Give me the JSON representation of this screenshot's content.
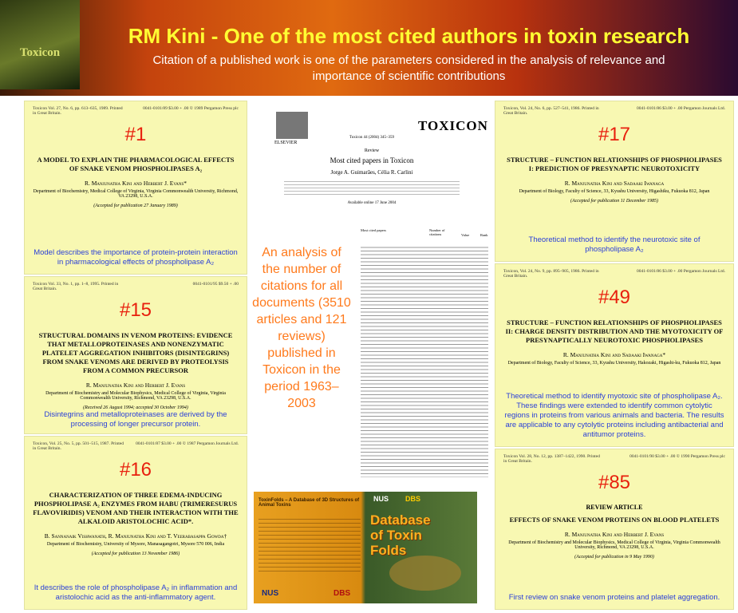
{
  "header": {
    "cover_title": "Toxicon",
    "title": "RM Kini - One of the most cited authors in toxin research",
    "subtitle": "Citation of a published work is one of the parameters considered in the analysis of relevance and importance of scientific contributions"
  },
  "panels": [
    {
      "number": "#1",
      "journal_left": "Toxicon Vol. 27, No. 6, pp. 613–635, 1989. Printed in Great Britain.",
      "journal_right": "0041-0101/89 $3.00 + .00 © 1989 Pergamon Press plc",
      "title": "A MODEL TO EXPLAIN THE PHARMACOLOGICAL EFFECTS OF SNAKE VENOM PHOSPHOLIPASES A₂",
      "authors": "R. Manjunatha Kini and Herbert J. Evans*",
      "affiliation": "Department of Biochemistry, Medical College of Virginia, Virginia Commonwealth University, Richmond, VA 23298, U.S.A.",
      "accepted": "(Accepted for publication 27 January 1989)",
      "caption": "Model describes the importance of protein-protein interaction in pharmacological effects of phospholipase A₂"
    },
    {
      "number": "#15",
      "journal_left": "Toxicon Vol. 33, No. 1, pp. 1–8, 1995. Printed in Great Britain.",
      "journal_right": "0041-0101/95 $9.50 + .00",
      "title": "STRUCTURAL DOMAINS IN VENOM PROTEINS: EVIDENCE THAT METALLOPROTEINASES AND NONENZYMATIC PLATELET AGGREGATION INHIBITORS (DISINTEGRINS) FROM SNAKE VENOMS ARE DERIVED BY PROTEOLYSIS FROM A COMMON PRECURSOR",
      "authors": "R. Manjunatha Kini and Herbert J. Evans",
      "affiliation": "Department of Biochemistry and Molecular Biophysics, Medical College of Virginia, Virginia Commonwealth University, Richmond, VA 23298, U.S.A.",
      "accepted": "(Received 26 August 1994; accepted 30 October 1994)",
      "caption": "Disintegrins and metalloproteinases are derived by the processing of longer precursor protein."
    },
    {
      "number": "#16",
      "journal_left": "Toxicon, Vol. 25, No. 5, pp. 501–515, 1987. Printed in Great Britain.",
      "journal_right": "0041-0101/87 $3.00 + .00 © 1987 Pergamon Journals Ltd.",
      "title": "CHARACTERIZATION OF THREE EDEMA-INDUCING PHOSPHOLIPASE A₂ ENZYMES FROM HABU (TRIMERESURUS FLAVOVIRIDIS) VENOM AND THEIR INTERACTION WITH THE ALKALOID ARISTOLOCHIC ACID*.",
      "authors": "B. Sannanaik Vishwanath, R. Manjunatha Kini and T. Veerabasappa Gowda†",
      "affiliation": "Department of Biochemistry, University of Mysore, Manasagangotri, Mysore 570 006, India",
      "accepted": "(Accepted for publication 13 November 1986)",
      "caption": "It describes the role of phospholipase A₂ in inflammation and aristolochic acid as the anti-inflammatory agent."
    },
    {
      "number": "#17",
      "journal_left": "Toxicon, Vol. 24, No. 6, pp. 527–541, 1986. Printed in Great Britain.",
      "journal_right": "0041-0101/86 $3.00 + .00 Pergamon Journals Ltd.",
      "title": "STRUCTURE – FUNCTION RELATIONSHIPS OF PHOSPHOLIPASES I: PREDICTION OF PRESYNAPTIC NEUROTOXICITY",
      "authors": "R. Manjunatha Kini and Sadaaki Iwanaga",
      "affiliation": "Department of Biology, Faculty of Science, 33, Kyushu University, Higashiku, Fukuoka 812, Japan",
      "accepted": "(Accepted for publication 11 December 1985)",
      "caption": "Theoretical method to identify the neurotoxic site of phospholipase A₂"
    },
    {
      "number": "#49",
      "journal_left": "Toxicon, Vol. 24, No. 9, pp. 895–905, 1986. Printed in Great Britain.",
      "journal_right": "0041-0101/86 $3.00 + .00 Pergamon Journals Ltd.",
      "title": "STRUCTURE – FUNCTION RELATIONSHIPS OF PHOSPHOLIPASES II: CHARGE DENSITY DISTRIBUTION AND THE MYOTOXICITY OF PRESYNAPTICALLY NEUROTOXIC PHOSPHOLIPASES",
      "authors": "R. Manjunatha Kini and Sadaaki Iwanaga*",
      "affiliation": "Department of Biology, Faculty of Science, 33, Kyushu University, Hakozaki, Higashi-ku, Fukuoka 812, Japan",
      "caption": "Theoretical method to identify myotoxic site of phospholipase A₂. These findings were extended to identify common cytolytic regions in proteins from various animals and bacteria. The results are applicable to any cytolytic proteins including antibacterial and antitumor proteins."
    },
    {
      "number": "#85",
      "journal_left": "Toxicon Vol. 28, No. 12, pp. 1387–1422, 1990. Printed in Great Britain.",
      "journal_right": "0041-0101/90 $3.00 + .00 © 1990 Pergamon Press plc",
      "kind": "REVIEW ARTICLE",
      "title": "EFFECTS OF SNAKE VENOM PROTEINS ON BLOOD PLATELETS",
      "authors": "R. Manjunatha Kini and Herbert J. Evans",
      "affiliation": "Department of Biochemistry and Molecular Biophysics, Medical College of Virginia, Virginia Commonwealth University, Richmond, VA 23298, U.S.A.",
      "accepted": "(Accepted for publication in 9 May 1990)",
      "caption": "First review on snake venom proteins and platelet aggregation."
    }
  ],
  "review_paper": {
    "publisher": "ELSEVIER",
    "journal": "TOXICON",
    "citation": "Toxicon 44 (2004) 345–359",
    "kind": "Review",
    "title": "Most cited papers in Toxicon",
    "authors": "Jorge A. Guimarães, Célia R. Carlini",
    "online": "Available online 17 June 2004",
    "table_headers": [
      "Most cited papers",
      "Number of citations",
      "Value",
      "Rank"
    ]
  },
  "analysis_text": "An analysis of the number of citations for all documents (3510 articles and 121 reviews) published in Toxicon in the period 1963–2003",
  "database": {
    "heading": "ToxinFolds – A Database of 3D Structures of Animal Toxins",
    "title": "Database of Toxin Folds",
    "logo_left": "NUS",
    "logo_right": "DBS"
  }
}
